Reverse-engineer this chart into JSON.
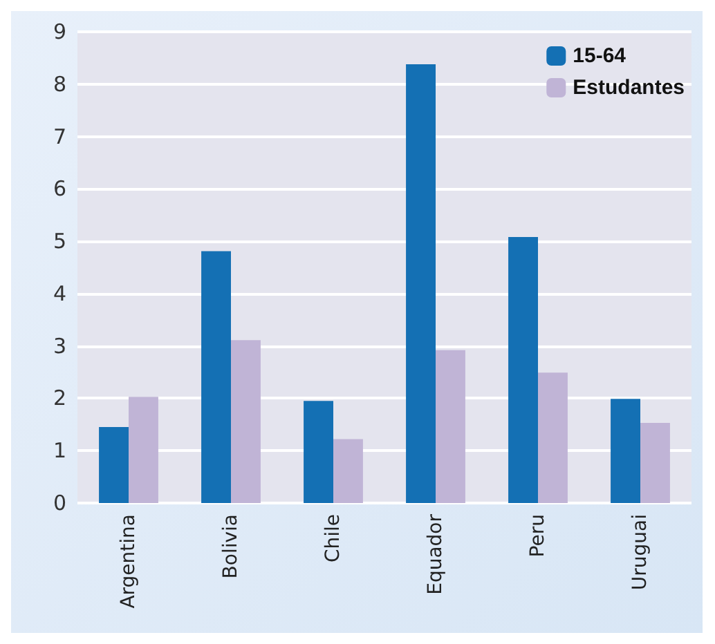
{
  "chart_data": {
    "type": "bar",
    "categories": [
      "Argentina",
      "Bolivia",
      "Chile",
      "Equador",
      "Peru",
      "Uruguai"
    ],
    "series": [
      {
        "name": "15-64",
        "color": "#1470b4",
        "values": [
          1.45,
          4.81,
          1.95,
          8.38,
          5.08,
          1.99
        ]
      },
      {
        "name": "Estudantes",
        "color": "#c0b4d6",
        "values": [
          2.03,
          3.11,
          1.22,
          2.92,
          2.49,
          1.53
        ]
      }
    ],
    "ylim": [
      0,
      9
    ],
    "yticks": [
      0,
      1,
      2,
      3,
      4,
      5,
      6,
      7,
      8,
      9
    ],
    "grid": "y",
    "legend": "top right"
  }
}
